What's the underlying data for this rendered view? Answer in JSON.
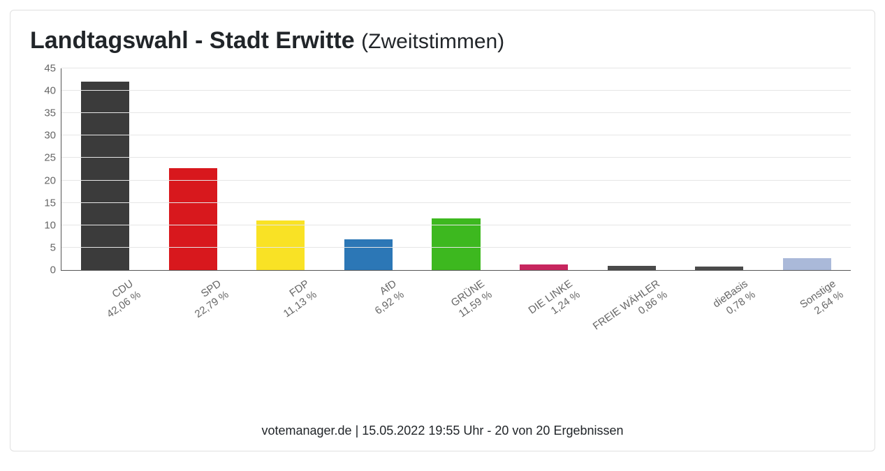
{
  "title_main": "Landtagswahl - Stadt Erwitte",
  "title_sub": "(Zweitstimmen)",
  "footer_text": "votemanager.de | 15.05.2022 19:55 Uhr - 20 von 20 Ergebnissen",
  "chart": {
    "type": "bar",
    "ylim": [
      0,
      45
    ],
    "ytick_step": 5,
    "yticks": [
      0,
      5,
      10,
      15,
      20,
      25,
      30,
      35,
      40,
      45
    ],
    "grid_color": "#e6e6e6",
    "axis_color": "#555555",
    "background_color": "#ffffff",
    "bar_width_ratio": 0.55,
    "xlabel_rotation_deg": -35,
    "tick_fontsize": 15,
    "xlabel_fontsize": 15,
    "title_fontsize": 34,
    "footer_fontsize": 18,
    "categories": [
      {
        "name": "CDU",
        "pct_label": "42,06 %",
        "value": 42.06,
        "color": "#3b3b3b"
      },
      {
        "name": "SPD",
        "pct_label": "22,79 %",
        "value": 22.79,
        "color": "#d8181d"
      },
      {
        "name": "FDP",
        "pct_label": "11,13 %",
        "value": 11.13,
        "color": "#f9e225"
      },
      {
        "name": "AfD",
        "pct_label": "6,92 %",
        "value": 6.92,
        "color": "#2c77b6"
      },
      {
        "name": "GRÜNE",
        "pct_label": "11,59 %",
        "value": 11.59,
        "color": "#3db81f"
      },
      {
        "name": "DIE LINKE",
        "pct_label": "1,24 %",
        "value": 1.24,
        "color": "#c7265e"
      },
      {
        "name": "FREIE WÄHLER",
        "pct_label": "0,86 %",
        "value": 0.86,
        "color": "#4a4a4a"
      },
      {
        "name": "dieBasis",
        "pct_label": "0,78 %",
        "value": 0.78,
        "color": "#4a4a4a"
      },
      {
        "name": "Sonstige",
        "pct_label": "2,64 %",
        "value": 2.64,
        "color": "#aab9d9"
      }
    ]
  }
}
